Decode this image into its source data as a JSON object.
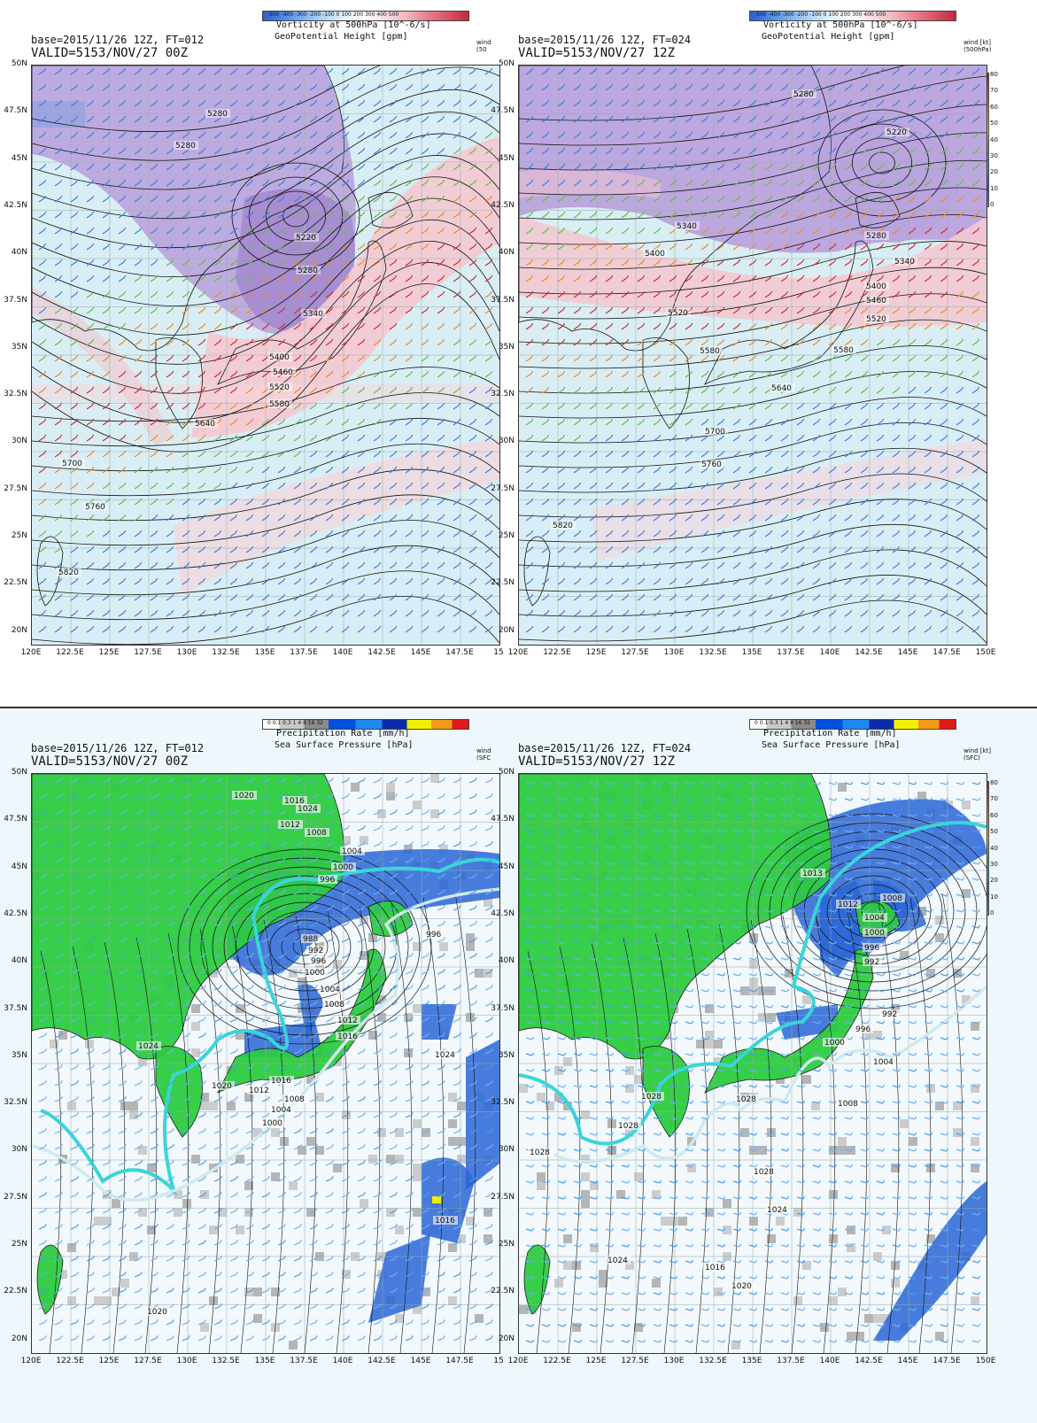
{
  "panels": [
    {
      "id": "vort-ft012",
      "base": "base=2015/11/26 12Z, FT=012",
      "valid": "VALID=5153/NOV/27 00Z",
      "legend_title": "Vorticity at 500hPa [10^-6/s]",
      "legend_ticks": "-500 -400 -300 -200 -100  0  100  200  300  400  500",
      "field_title": "GeoPotential Height [gpm]",
      "wind_tag": [
        "wind",
        "(50"
      ],
      "show_windbar": false,
      "x_ticks": [
        "120E",
        "122.5E",
        "125E",
        "127.5E",
        "130E",
        "132.5E",
        "135E",
        "137.5E",
        "140E",
        "142.5E",
        "145E",
        "147.5E",
        "15"
      ],
      "contour_labels": [
        "5280",
        "5280",
        "5220",
        "5280",
        "5340",
        "5400",
        "5460",
        "5520",
        "5580",
        "5640",
        "5700",
        "5760",
        "5820"
      ]
    },
    {
      "id": "vort-ft024",
      "base": "base=2015/11/26 12Z, FT=024",
      "valid": "VALID=5153/NOV/27 12Z",
      "legend_title": "Vorticity at 500hPa [10^-6/s]",
      "legend_ticks": "-500 -400 -300 -200 -100  0  100  200  300  400  500",
      "field_title": "GeoPotential Height [gpm]",
      "wind_tag": [
        "wind [kt]",
        "(500hPa)"
      ],
      "show_windbar": true,
      "x_ticks": [
        "120E",
        "122.5E",
        "125E",
        "127.5E",
        "130E",
        "132.5E",
        "135E",
        "137.5E",
        "140E",
        "142.5E",
        "145E",
        "147.5E",
        "150E"
      ],
      "contour_labels": [
        "5280",
        "5220",
        "5340",
        "5280",
        "5400",
        "5340",
        "5400",
        "5460",
        "5520",
        "5520",
        "5580",
        "5580",
        "5640",
        "5700",
        "5760",
        "5820"
      ]
    },
    {
      "id": "precip-ft012",
      "base": "base=2015/11/26 12Z, FT=012",
      "valid": "VALID=5153/NOV/27 00Z",
      "legend_title": "Precipitation Rate [mm/h]",
      "legend_ticks": "0   0.1  0.3   1    4    8   16   32",
      "field_title": "Sea Surface Pressure [hPa]",
      "wind_tag": [
        "wind",
        "(SFC"
      ],
      "show_windbar": false,
      "x_ticks": [
        "120E",
        "122.5E",
        "125E",
        "127.5E",
        "130E",
        "132.5E",
        "135E",
        "137.5E",
        "140E",
        "142.5E",
        "145E",
        "147.5E",
        "15"
      ],
      "contour_labels": [
        "1020",
        "1016",
        "1024",
        "1012",
        "1008",
        "1004",
        "1000",
        "996",
        "988",
        "992",
        "996",
        "1000",
        "1004",
        "1008",
        "1012",
        "1016",
        "1024",
        "1020",
        "1016",
        "1012",
        "1008",
        "1004",
        "1000",
        "996",
        "1024",
        "1016",
        "1020"
      ]
    },
    {
      "id": "precip-ft024",
      "base": "base=2015/11/26 12Z, FT=024",
      "valid": "VALID=5153/NOV/27 12Z",
      "legend_title": "Precipitation Rate [mm/h]",
      "legend_ticks": "0   0.1  0.3   1    4    8   16   32",
      "field_title": "Sea Surface Pressure [hPa]",
      "wind_tag": [
        "wind [kt]",
        "(SFC)"
      ],
      "show_windbar": true,
      "x_ticks": [
        "120E",
        "122.5E",
        "125E",
        "127.5E",
        "130E",
        "132.5E",
        "135E",
        "137.5E",
        "140E",
        "142.5E",
        "145E",
        "147.5E",
        "150E"
      ],
      "contour_labels": [
        "1013",
        "1012",
        "1008",
        "1004",
        "1000",
        "996",
        "992",
        "992",
        "996",
        "1000",
        "1004",
        "1008",
        "1016",
        "1020",
        "1028",
        "1028",
        "1028",
        "1028",
        "1024",
        "1024",
        "1020",
        "1020",
        "1028"
      ]
    }
  ],
  "y_ticks": [
    "50N",
    "47.5N",
    "45N",
    "42.5N",
    "40N",
    "37.5N",
    "35N",
    "32.5N",
    "30N",
    "27.5N",
    "25N",
    "22.5N",
    "20N"
  ],
  "windbar_ticks": [
    "80",
    "70",
    "60",
    "50",
    "40",
    "30",
    "20",
    "10",
    "0"
  ],
  "colors": {
    "vort_neg": "#4a7bd8",
    "vort_pos": "#e0707a",
    "vort_bg": "#f3c9d3",
    "vort_purple": "#b79ad9",
    "land": "#2ecc40",
    "precip_gray": "#b8b8b8",
    "precip_blue": "#2a66d6",
    "front_cyan": "#38d6d8",
    "front_white": "#d0e8ee",
    "contour": "#111111"
  }
}
